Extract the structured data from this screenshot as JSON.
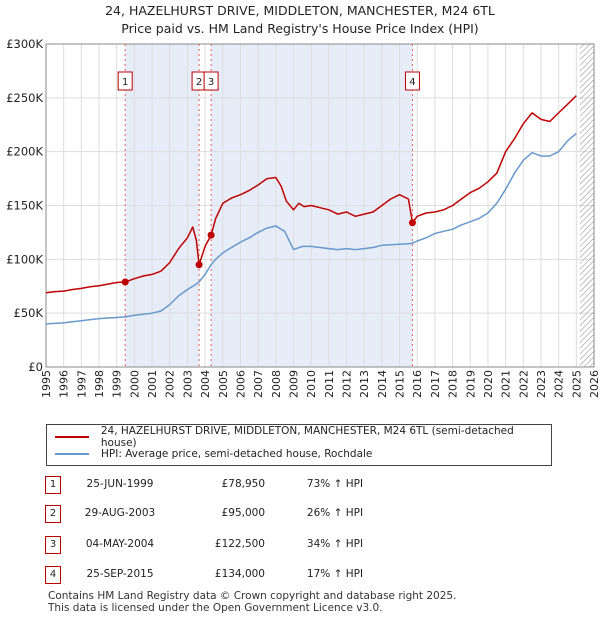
{
  "titles": {
    "line1": "24, HAZELHURST DRIVE, MIDDLETON, MANCHESTER, M24 6TL",
    "line2": "Price paid vs. HM Land Registry's House Price Index (HPI)"
  },
  "colors": {
    "price_line": "#c00000",
    "hpi_line": "#6699cc",
    "shade": "#e6ecf8",
    "marker_line": "#e06060",
    "grid": "#dddddd"
  },
  "chart_data": {
    "type": "line",
    "xlim": [
      1995,
      2026
    ],
    "ylim": [
      0,
      300000
    ],
    "y_ticks": [
      0,
      50000,
      100000,
      150000,
      200000,
      250000,
      300000
    ],
    "y_tick_labels": [
      "£0",
      "£50K",
      "£100K",
      "£150K",
      "£200K",
      "£250K",
      "£300K"
    ],
    "x_ticks": [
      1995,
      1996,
      1997,
      1998,
      1999,
      2000,
      2001,
      2002,
      2003,
      2004,
      2005,
      2006,
      2007,
      2008,
      2009,
      2010,
      2011,
      2012,
      2013,
      2014,
      2015,
      2016,
      2017,
      2018,
      2019,
      2020,
      2021,
      2022,
      2023,
      2024,
      2025,
      2026
    ],
    "x_tick_labels": [
      "1995",
      "1996",
      "1997",
      "1998",
      "1999",
      "2000",
      "2001",
      "2002",
      "2003",
      "2004",
      "2005",
      "2006",
      "2007",
      "2008",
      "2009",
      "2010",
      "2011",
      "2012",
      "2013",
      "2014",
      "2015",
      "2016",
      "2017",
      "2018",
      "2019",
      "2020",
      "2021",
      "2022",
      "2023",
      "2024",
      "2025",
      "2026"
    ],
    "shaded_ranges": [
      [
        1999.48,
        2003.66
      ],
      [
        2004.34,
        2015.73
      ]
    ],
    "hatched_from": 2025.2,
    "markers": [
      {
        "label": "1",
        "x": 1999.48,
        "y": 78950
      },
      {
        "label": "2",
        "x": 2003.66,
        "y": 95000
      },
      {
        "label": "3",
        "x": 2004.34,
        "y": 122500
      },
      {
        "label": "4",
        "x": 2015.73,
        "y": 134000
      }
    ],
    "series": [
      {
        "name": "24, HAZELHURST DRIVE, MIDDLETON, MANCHESTER, M24 6TL (semi-detached house)",
        "x": [
          1995,
          1995.5,
          1996,
          1996.5,
          1997,
          1997.5,
          1998,
          1998.5,
          1999,
          1999.48,
          2000,
          2000.5,
          2001,
          2001.5,
          2002,
          2002.5,
          2003,
          2003.3,
          2003.5,
          2003.66,
          2004,
          2004.34,
          2004.6,
          2005,
          2005.5,
          2006,
          2006.5,
          2007,
          2007.5,
          2008,
          2008.3,
          2008.6,
          2009,
          2009.3,
          2009.6,
          2010,
          2010.5,
          2011,
          2011.5,
          2012,
          2012.5,
          2013,
          2013.5,
          2014,
          2014.5,
          2015,
          2015.5,
          2015.73,
          2016,
          2016.5,
          2017,
          2017.5,
          2018,
          2018.5,
          2019,
          2019.5,
          2020,
          2020.5,
          2021,
          2021.5,
          2022,
          2022.5,
          2023,
          2023.5,
          2024,
          2024.5,
          2025
        ],
        "values": [
          69000,
          70000,
          70500,
          72000,
          73000,
          74500,
          75500,
          77000,
          78500,
          78950,
          82000,
          84500,
          86000,
          89000,
          97000,
          110000,
          120000,
          130000,
          118000,
          95000,
          112000,
          122500,
          138000,
          152000,
          157000,
          160000,
          164000,
          169000,
          175000,
          176000,
          168000,
          154000,
          146000,
          152000,
          149000,
          150000,
          148000,
          146000,
          142000,
          144000,
          140000,
          142000,
          144000,
          150000,
          156000,
          160000,
          156000,
          134000,
          140000,
          143000,
          144000,
          146000,
          150000,
          156000,
          162000,
          166000,
          172000,
          180000,
          200000,
          212000,
          226000,
          236000,
          230000,
          228000,
          236000,
          244000,
          252000
        ]
      },
      {
        "name": "HPI: Average price, semi-detached house, Rochdale",
        "x": [
          1995,
          1995.5,
          1996,
          1996.5,
          1997,
          1997.5,
          1998,
          1998.5,
          1999,
          1999.48,
          2000,
          2000.5,
          2001,
          2001.5,
          2002,
          2002.5,
          2003,
          2003.5,
          2003.66,
          2004,
          2004.34,
          2004.6,
          2005,
          2005.5,
          2006,
          2006.5,
          2007,
          2007.5,
          2008,
          2008.5,
          2009,
          2009.5,
          2010,
          2010.5,
          2011,
          2011.5,
          2012,
          2012.5,
          2013,
          2013.5,
          2014,
          2014.5,
          2015,
          2015.5,
          2015.73,
          2016,
          2016.5,
          2017,
          2017.5,
          2018,
          2018.5,
          2019,
          2019.5,
          2020,
          2020.5,
          2021,
          2021.5,
          2022,
          2022.5,
          2023,
          2023.5,
          2024,
          2024.5,
          2025
        ],
        "values": [
          40000,
          40500,
          41000,
          42000,
          43000,
          44000,
          45000,
          45500,
          46000,
          46500,
          48000,
          49000,
          50000,
          52000,
          58000,
          66000,
          72000,
          77000,
          79000,
          86000,
          95000,
          100000,
          106000,
          111000,
          116000,
          120000,
          125000,
          129000,
          131000,
          126000,
          109000,
          112000,
          112000,
          111000,
          110000,
          109000,
          110000,
          109000,
          110000,
          111000,
          113000,
          113500,
          114000,
          114500,
          115000,
          117000,
          120000,
          124000,
          126000,
          128000,
          132000,
          135000,
          138000,
          143000,
          152000,
          165000,
          180000,
          192000,
          199000,
          196000,
          196000,
          200000,
          210000,
          217000
        ]
      }
    ]
  },
  "legend": {
    "price_label": "24, HAZELHURST DRIVE, MIDDLETON, MANCHESTER, M24 6TL (semi-detached house)",
    "hpi_label": "HPI: Average price, semi-detached house, Rochdale"
  },
  "sales": [
    {
      "num": "1",
      "date": "25-JUN-1999",
      "price": "£78,950",
      "hpi": "73% ↑ HPI"
    },
    {
      "num": "2",
      "date": "29-AUG-2003",
      "price": "£95,000",
      "hpi": "26% ↑ HPI"
    },
    {
      "num": "3",
      "date": "04-MAY-2004",
      "price": "£122,500",
      "hpi": "34% ↑ HPI"
    },
    {
      "num": "4",
      "date": "25-SEP-2015",
      "price": "£134,000",
      "hpi": "17% ↑ HPI"
    }
  ],
  "footer": {
    "line1": "Contains HM Land Registry data © Crown copyright and database right 2025.",
    "line2": "This data is licensed under the Open Government Licence v3.0."
  }
}
